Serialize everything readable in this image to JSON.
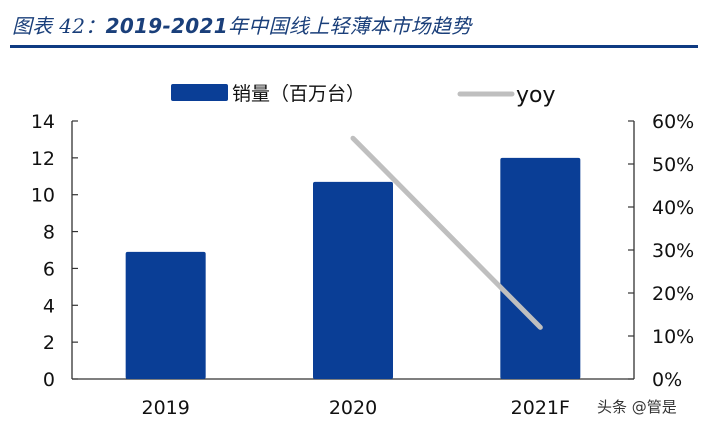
{
  "header": {
    "title_prefix": "图表 42：",
    "title_years": "2019-2021",
    "title_suffix": "年中国线上轻薄本市场趋势"
  },
  "legend": {
    "bar_label": "销量（百万台）",
    "line_label": "yoy"
  },
  "watermark": "头条 @管是",
  "colors": {
    "bar": "#0a3e96",
    "line": "#bfbfbf",
    "title": "#1a3f7a",
    "divider": "#0f3b82"
  },
  "chart_data": {
    "type": "bar",
    "title": "图表 42：2019-2021年中国线上轻薄本市场趋势",
    "categories": [
      "2019",
      "2020",
      "2021F"
    ],
    "series": [
      {
        "name": "销量（百万台）",
        "type": "bar",
        "axis": "left",
        "values": [
          6.9,
          10.7,
          12.0
        ]
      },
      {
        "name": "yoy",
        "type": "line",
        "axis": "right",
        "values": [
          null,
          0.56,
          0.12
        ]
      }
    ],
    "left_axis": {
      "ylim": [
        0,
        14
      ],
      "ticks": [
        "0",
        "2",
        "4",
        "6",
        "8",
        "10",
        "12",
        "14"
      ]
    },
    "right_axis": {
      "ylim": [
        0,
        0.6
      ],
      "ticks": [
        "0%",
        "10%",
        "20%",
        "30%",
        "40%",
        "50%",
        "60%"
      ]
    },
    "xlabel": "",
    "ylabel": "",
    "grid": false,
    "legend_position": "top"
  }
}
